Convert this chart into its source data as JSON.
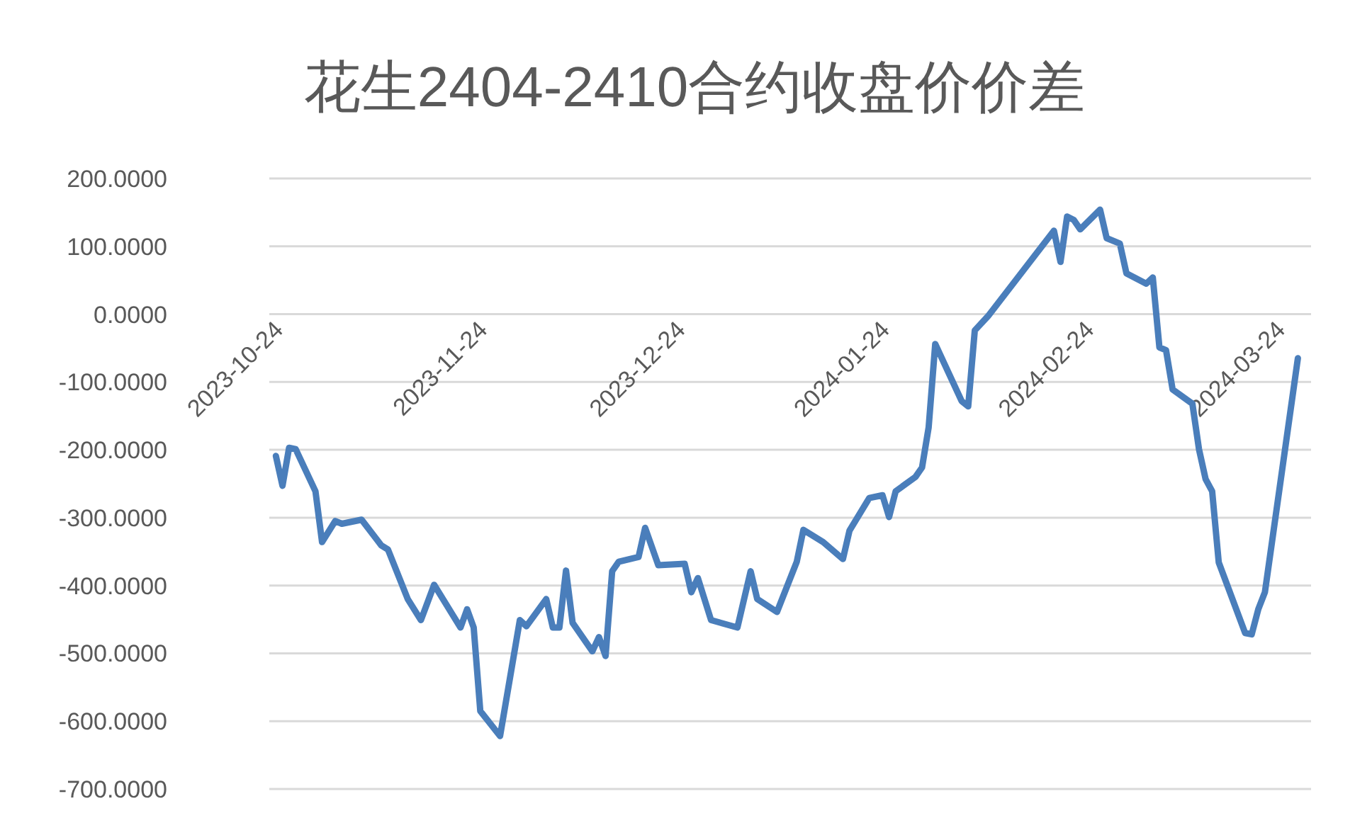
{
  "chart_data": {
    "type": "line",
    "title": "花生2404-2410合约收盘价价差",
    "x": [
      "2023-10-24",
      "2023-10-25",
      "2023-10-26",
      "2023-10-27",
      "2023-10-30",
      "2023-10-31",
      "2023-11-02",
      "2023-11-03",
      "2023-11-06",
      "2023-11-09",
      "2023-11-10",
      "2023-11-13",
      "2023-11-15",
      "2023-11-17",
      "2023-11-21",
      "2023-11-22",
      "2023-11-23",
      "2023-11-24",
      "2023-11-27",
      "2023-11-30",
      "2023-12-01",
      "2023-12-04",
      "2023-12-05",
      "2023-12-06",
      "2023-12-07",
      "2023-12-08",
      "2023-12-11",
      "2023-12-12",
      "2023-12-13",
      "2023-12-14",
      "2023-12-15",
      "2023-12-18",
      "2023-12-19",
      "2023-12-21",
      "2023-12-25",
      "2023-12-26",
      "2023-12-27",
      "2023-12-29",
      "2024-01-02",
      "2024-01-04",
      "2024-01-05",
      "2024-01-08",
      "2024-01-11",
      "2024-01-12",
      "2024-01-15",
      "2024-01-18",
      "2024-01-19",
      "2024-01-22",
      "2024-01-24",
      "2024-01-25",
      "2024-01-26",
      "2024-01-29",
      "2024-01-30",
      "2024-01-31",
      "2024-02-01",
      "2024-02-05",
      "2024-02-06",
      "2024-02-07",
      "2024-02-09",
      "2024-02-19",
      "2024-02-20",
      "2024-02-21",
      "2024-02-22",
      "2024-02-23",
      "2024-02-26",
      "2024-02-27",
      "2024-02-29",
      "2024-03-01",
      "2024-03-04",
      "2024-03-05",
      "2024-03-06",
      "2024-03-07",
      "2024-03-08",
      "2024-03-11",
      "2024-03-12",
      "2024-03-13",
      "2024-03-14",
      "2024-03-15",
      "2024-03-19",
      "2024-03-20",
      "2024-03-21",
      "2024-03-22",
      "2024-03-27"
    ],
    "series": [
      {
        "color": "#4a7ebb",
        "values": [
          -209,
          -253,
          -197,
          -199,
          -261,
          -336,
          -305,
          -309,
          -303,
          -341,
          -347,
          -420,
          -451,
          -399,
          -462,
          -435,
          -462,
          -585,
          -622,
          -451,
          -460,
          -420,
          -462,
          -462,
          -378,
          -455,
          -497,
          -476,
          -504,
          -379,
          -365,
          -358,
          -315,
          -370,
          -368,
          -410,
          -389,
          -451,
          -462,
          -379,
          -420,
          -439,
          -365,
          -318,
          -336,
          -361,
          -319,
          -271,
          -267,
          -299,
          -261,
          -240,
          -226,
          -167,
          -44,
          -128,
          -136,
          -24,
          -3,
          123,
          77,
          144,
          139,
          125,
          154,
          112,
          104,
          60,
          45,
          54,
          -49,
          -53,
          -111,
          -132,
          -199,
          -243,
          -261,
          -366,
          -470,
          -472,
          -435,
          -410,
          -65
        ]
      }
    ],
    "xlim": [
      "2023-10-23",
      "2024-03-29"
    ],
    "xticks": [
      "2023-10-24",
      "2023-11-24",
      "2023-12-24",
      "2024-01-24",
      "2024-02-24",
      "2024-03-24"
    ],
    "ylim": [
      -700,
      200
    ],
    "yticks": [
      {
        "value": 200,
        "label": "200.0000"
      },
      {
        "value": 100,
        "label": "100.0000"
      },
      {
        "value": 0,
        "label": "0.0000"
      },
      {
        "value": -100,
        "label": "-100.0000"
      },
      {
        "value": -200,
        "label": "-200.0000"
      },
      {
        "value": -300,
        "label": "-300.0000"
      },
      {
        "value": -400,
        "label": "-400.0000"
      },
      {
        "value": -500,
        "label": "-500.0000"
      },
      {
        "value": -600,
        "label": "-600.0000"
      },
      {
        "value": -700,
        "label": "-700.0000"
      }
    ],
    "grid": "y",
    "line_style": "solid"
  }
}
